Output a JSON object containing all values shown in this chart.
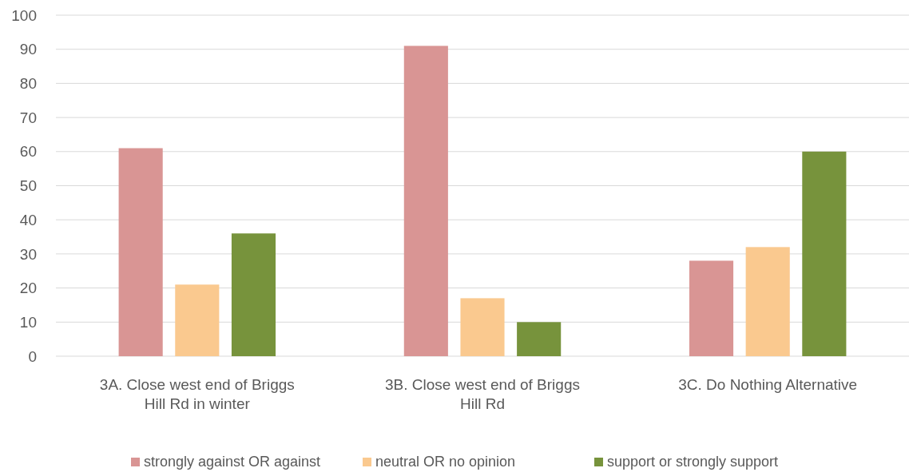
{
  "chart_data": {
    "type": "bar",
    "categories": [
      "3A. Close west end of Briggs Hill Rd in winter",
      "3B. Close west end of Briggs Hill Rd",
      "3C. Do Nothing Alternative"
    ],
    "series": [
      {
        "name": "strongly against OR against",
        "color": "#d99594",
        "values": [
          61,
          91,
          28
        ]
      },
      {
        "name": "neutral OR no opinion",
        "color": "#fac98f",
        "values": [
          21,
          17,
          32
        ]
      },
      {
        "name": "support or strongly support",
        "color": "#77933c",
        "values": [
          36,
          10,
          60
        ]
      }
    ],
    "ylim": [
      0,
      100
    ],
    "yticks": [
      0,
      10,
      20,
      30,
      40,
      50,
      60,
      70,
      80,
      90,
      100
    ],
    "grid": true,
    "legend": "bottom"
  }
}
